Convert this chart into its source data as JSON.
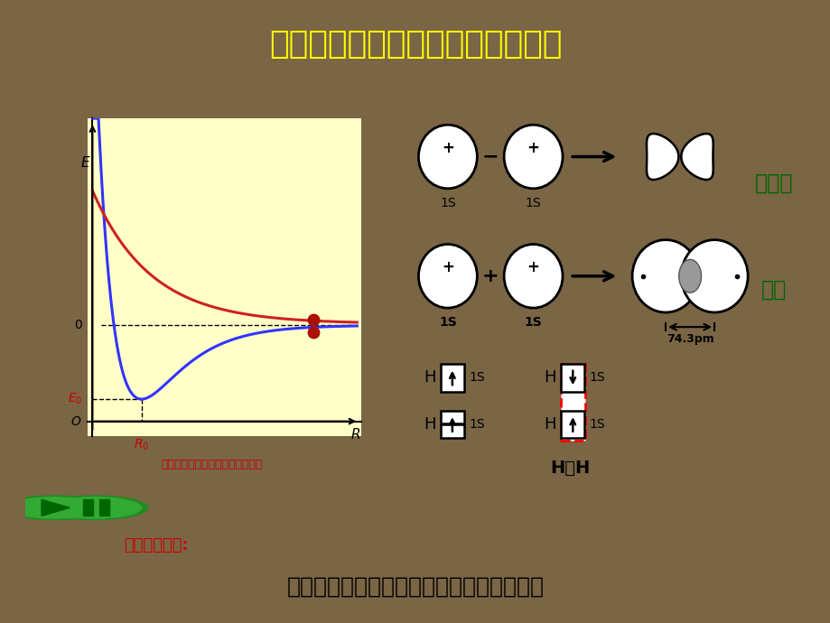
{
  "title": "二、氢分子的形成和共价键的本质",
  "title_color": "#FFFF00",
  "title_bg": "#0000CC",
  "main_bg": "#C5DDE8",
  "left_panel_bg": "#FFFFC8",
  "graph_caption": "氢分子的能量与核间距的关系曲线",
  "graph_caption_color": "#CC0000",
  "paijutai_label": "排斥态",
  "jitai_label": "基态",
  "bond_length": "74.3pm",
  "bottom_text1": "共价键的本质:",
  "bottom_text2": "成键原子的原子轨道部分重叠而形成共价键",
  "bottom_text1_color": "#CC0000",
  "bottom_text2_color": "#000000",
  "bottom_bg1": "#0000CC",
  "bottom_bg2": "#CCFF00",
  "label_color": "#006600",
  "border_color_top": "#CC0000",
  "border_color_bottom": "#00CC00",
  "blue_bar_bottom": "#0000BB"
}
